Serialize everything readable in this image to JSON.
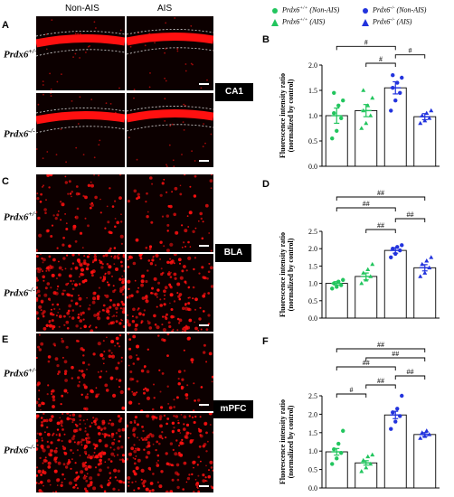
{
  "columns": [
    "Non-AIS",
    "AIS"
  ],
  "rows": {
    "wt": "Prdx6+/+",
    "ko": "Prdx6-/-"
  },
  "panel_labels": [
    "A",
    "B",
    "C",
    "D",
    "E",
    "F"
  ],
  "regions": [
    "CA1",
    "BLA",
    "mPFC"
  ],
  "legend": {
    "items": [
      {
        "text": "Prdx6+/+ (Non-AIS)",
        "color": "#22c55e",
        "marker": "circle"
      },
      {
        "text": "Prdx6-/- (Non-AIS)",
        "color": "#2233dd",
        "marker": "circle"
      },
      {
        "text": "Prdx6+/+ (AIS)",
        "color": "#22c55e",
        "marker": "triangle"
      },
      {
        "text": "Prdx6-/- (AIS)",
        "color": "#2233dd",
        "marker": "triangle"
      }
    ]
  },
  "colors": {
    "wt": "#22c55e",
    "ko": "#2233dd",
    "signal": "#ff1010"
  },
  "chart_data": [
    {
      "panel": "B",
      "type": "bar",
      "ylabel": "Fluorescence intensity ratio\n(normalized by control)",
      "ylim": [
        0,
        2.0
      ],
      "yticks": [
        "0.0",
        "0.5",
        "1.0",
        "1.5",
        "2.0"
      ],
      "values": [
        1.0,
        1.1,
        1.55,
        0.98
      ],
      "errors": [
        0.15,
        0.12,
        0.12,
        0.06
      ],
      "points": [
        [
          0.55,
          0.7,
          0.95,
          1.05,
          1.2,
          1.3,
          1.45
        ],
        [
          0.75,
          0.85,
          1.0,
          1.1,
          1.2,
          1.35,
          1.5
        ],
        [
          1.1,
          1.3,
          1.45,
          1.55,
          1.65,
          1.75,
          1.8
        ],
        [
          0.85,
          0.9,
          0.95,
          1.0,
          1.05,
          1.1
        ]
      ],
      "significance": [
        {
          "from": 0,
          "to": 2,
          "label": "#"
        },
        {
          "from": 1,
          "to": 2,
          "label": "#"
        },
        {
          "from": 2,
          "to": 3,
          "label": "#"
        }
      ]
    },
    {
      "panel": "D",
      "type": "bar",
      "ylabel": "Fluorescence intensity ratio\n(normalized by control)",
      "ylim": [
        0,
        2.5
      ],
      "yticks": [
        "0.0",
        "0.5",
        "1.0",
        "1.5",
        "2.0",
        "2.5"
      ],
      "values": [
        1.0,
        1.2,
        1.95,
        1.45
      ],
      "errors": [
        0.05,
        0.1,
        0.08,
        0.09
      ],
      "points": [
        [
          0.85,
          0.9,
          0.95,
          1.0,
          1.05,
          1.1
        ],
        [
          1.0,
          1.1,
          1.2,
          1.3,
          1.4,
          1.55
        ],
        [
          1.75,
          1.85,
          1.95,
          2.0,
          2.05,
          2.1
        ],
        [
          1.2,
          1.3,
          1.45,
          1.55,
          1.65,
          1.75
        ]
      ],
      "significance": [
        {
          "from": 0,
          "to": 3,
          "label": "##"
        },
        {
          "from": 0,
          "to": 2,
          "label": "##"
        },
        {
          "from": 1,
          "to": 2,
          "label": "##"
        },
        {
          "from": 2,
          "to": 3,
          "label": "##"
        }
      ]
    },
    {
      "panel": "F",
      "type": "bar",
      "ylabel": "Fluorescence intensity ratio\n(normalized by control)",
      "ylim": [
        0,
        2.5
      ],
      "yticks": [
        "0.0",
        "0.5",
        "1.0",
        "1.5",
        "2.0",
        "2.5"
      ],
      "values": [
        0.98,
        0.68,
        1.98,
        1.45
      ],
      "errors": [
        0.09,
        0.06,
        0.1,
        0.05
      ],
      "points": [
        [
          0.65,
          0.8,
          0.95,
          1.05,
          1.2,
          1.55
        ],
        [
          0.45,
          0.55,
          0.65,
          0.75,
          0.85,
          0.9
        ],
        [
          1.6,
          1.8,
          1.95,
          2.05,
          2.15,
          2.5
        ],
        [
          1.35,
          1.4,
          1.45,
          1.5,
          1.55
        ]
      ],
      "significance": [
        {
          "from": 0,
          "to": 1,
          "label": "#"
        },
        {
          "from": 1,
          "to": 2,
          "label": "##"
        },
        {
          "from": 0,
          "to": 2,
          "label": "##"
        },
        {
          "from": 2,
          "to": 3,
          "label": "##"
        },
        {
          "from": 1,
          "to": 3,
          "label": "##"
        },
        {
          "from": 0,
          "to": 3,
          "label": "##"
        }
      ]
    }
  ]
}
